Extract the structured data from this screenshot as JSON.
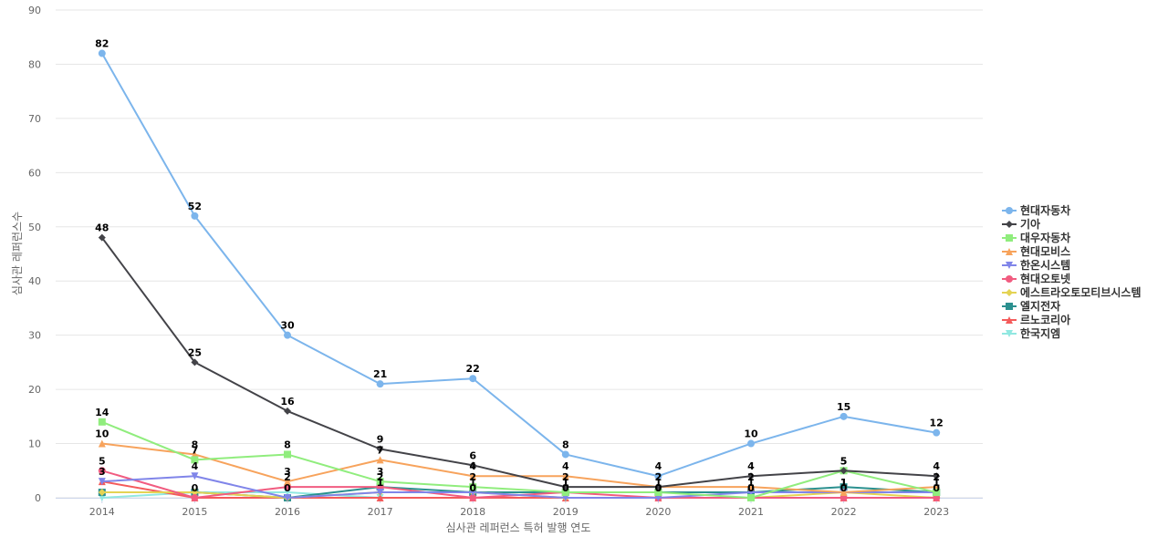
{
  "chart_data": {
    "type": "line",
    "title": "",
    "xlabel": "심사관 레퍼런스 특허 발행 연도",
    "ylabel": "심사관 레퍼런스수",
    "categories": [
      "2014",
      "2015",
      "2016",
      "2017",
      "2018",
      "2019",
      "2020",
      "2021",
      "2022",
      "2023"
    ],
    "ylim": [
      0,
      90
    ],
    "yticks": [
      0,
      10,
      20,
      30,
      40,
      50,
      60,
      70,
      80,
      90
    ],
    "grid": true,
    "legend_position": "right",
    "series": [
      {
        "name": "현대자동차",
        "color": "#7cb5ec",
        "marker": "circle",
        "values": [
          82,
          52,
          30,
          21,
          22,
          8,
          4,
          10,
          15,
          12
        ],
        "labeled": true
      },
      {
        "name": "기아",
        "color": "#434348",
        "marker": "diamond",
        "values": [
          48,
          25,
          16,
          9,
          6,
          2,
          2,
          4,
          5,
          4
        ],
        "labeled": true
      },
      {
        "name": "대우자동차",
        "color": "#90ed7d",
        "marker": "square",
        "values": [
          14,
          7,
          8,
          3,
          2,
          1,
          1,
          0,
          5,
          1
        ],
        "labeled": true
      },
      {
        "name": "현대모비스",
        "color": "#f7a35c",
        "marker": "triangle",
        "values": [
          10,
          8,
          3,
          7,
          4,
          4,
          2,
          2,
          1,
          2
        ],
        "labeled": true
      },
      {
        "name": "한온시스템",
        "color": "#8085e9",
        "marker": "triangle-down",
        "values": [
          3,
          4,
          0,
          1,
          1,
          0,
          0,
          1,
          1,
          1
        ],
        "labeled": true
      },
      {
        "name": "현대오토넷",
        "color": "#f15c80",
        "marker": "circle",
        "values": [
          5,
          0,
          2,
          2,
          0,
          1,
          0,
          0,
          0,
          0
        ],
        "labeled": true
      },
      {
        "name": "에스트라오토모티브시스템",
        "color": "#e4d354",
        "marker": "diamond",
        "values": [
          1,
          1,
          0,
          1,
          1,
          0,
          0,
          0,
          1,
          0
        ],
        "labeled": false
      },
      {
        "name": "엘지전자",
        "color": "#2b908f",
        "marker": "square",
        "values": [
          1,
          1,
          0,
          2,
          1,
          1,
          1,
          1,
          2,
          1
        ],
        "labeled": false
      },
      {
        "name": "르노코리아",
        "color": "#f45b5b",
        "marker": "triangle",
        "values": [
          3,
          0,
          0,
          0,
          0,
          0,
          0,
          0,
          0,
          0
        ],
        "labeled": false
      },
      {
        "name": "한국지엠",
        "color": "#91e8e1",
        "marker": "triangle-down",
        "values": [
          0,
          1,
          1,
          0,
          0,
          0,
          0,
          0,
          0,
          0
        ],
        "labeled": false
      }
    ]
  }
}
